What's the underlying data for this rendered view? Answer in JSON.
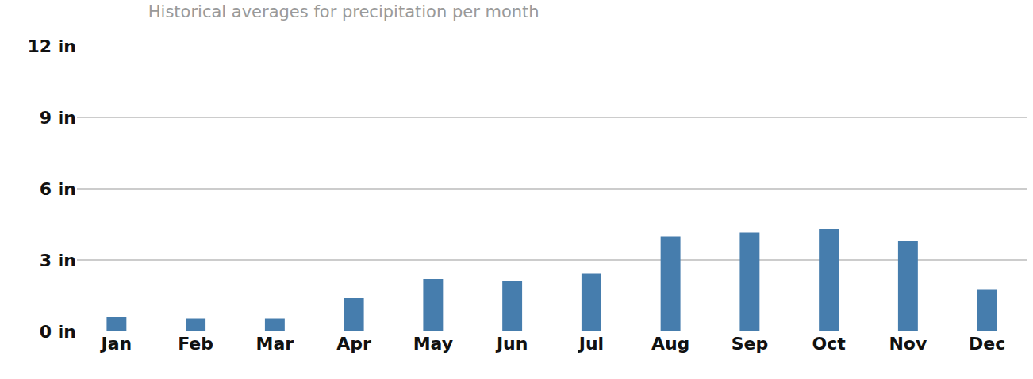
{
  "chart_data": {
    "type": "bar",
    "title": "Historical averages for precipitation per month",
    "categories": [
      "Jan",
      "Feb",
      "Mar",
      "Apr",
      "May",
      "Jun",
      "Jul",
      "Aug",
      "Sep",
      "Oct",
      "Nov",
      "Dec"
    ],
    "values": [
      0.6,
      0.55,
      0.55,
      1.4,
      2.2,
      2.1,
      2.45,
      3.98,
      4.15,
      4.3,
      3.8,
      1.75
    ],
    "color": "#467dad",
    "ylim": [
      0,
      12
    ],
    "yticks": [
      {
        "value": 0,
        "label": "0 in"
      },
      {
        "value": 3,
        "label": "3 in"
      },
      {
        "value": 6,
        "label": "6 in"
      },
      {
        "value": 9,
        "label": "9 in"
      },
      {
        "value": 12,
        "label": "12 in"
      }
    ],
    "grid": true
  }
}
